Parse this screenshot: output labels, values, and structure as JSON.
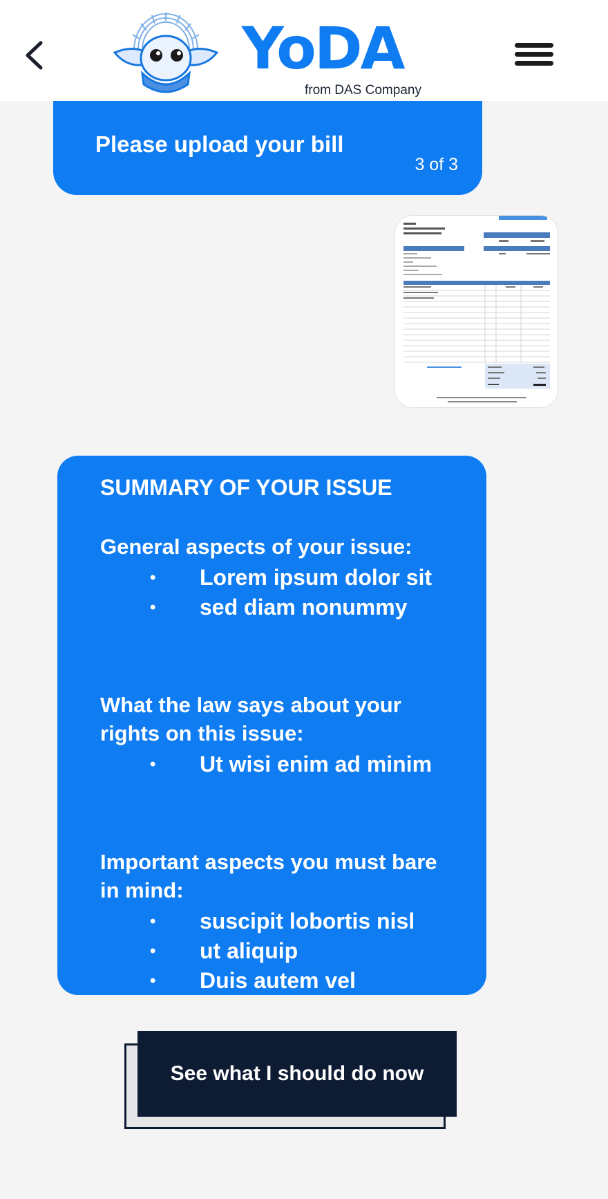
{
  "header": {
    "logo_text": "YoDA",
    "logo_subtitle": "from DAS Company",
    "back_icon": "chevron-left-icon",
    "menu_icon": "hamburger-menu-icon"
  },
  "upload_prompt": {
    "message": "Please upload your bill",
    "step": "3 of 3"
  },
  "summary": {
    "title": "SUMMARY OF YOUR ISSUE",
    "sections": [
      {
        "title": "General aspects of your issue:",
        "items": [
          "Lorem ipsum dolor sit",
          "sed diam nonummy"
        ]
      },
      {
        "title": "What the law says about your rights on this issue:",
        "items": [
          "Ut wisi enim ad minim"
        ]
      },
      {
        "title": "Important aspects you must bare in mind:",
        "items": [
          "suscipit lobortis nisl",
          "ut aliquip",
          "Duis autem vel"
        ]
      }
    ]
  },
  "cta": {
    "label": "See what I should do now"
  },
  "colors": {
    "primary": "#0f7cf2",
    "dark": "#0d1b33",
    "background": "#f4f4f5"
  }
}
